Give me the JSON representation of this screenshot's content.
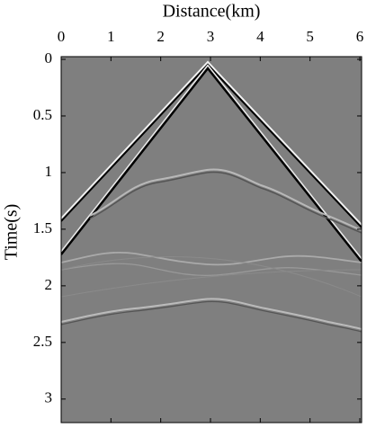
{
  "chart_data": {
    "type": "image",
    "xlabel": "Distance(km)",
    "ylabel": "Time(s)",
    "xlim": [
      0,
      6
    ],
    "xticks": [
      0,
      1,
      2,
      3,
      4,
      5,
      6
    ],
    "ylim": [
      0,
      3.2
    ],
    "yticks": [
      0,
      0.5,
      1,
      1.5,
      2,
      2.5,
      3
    ]
  }
}
